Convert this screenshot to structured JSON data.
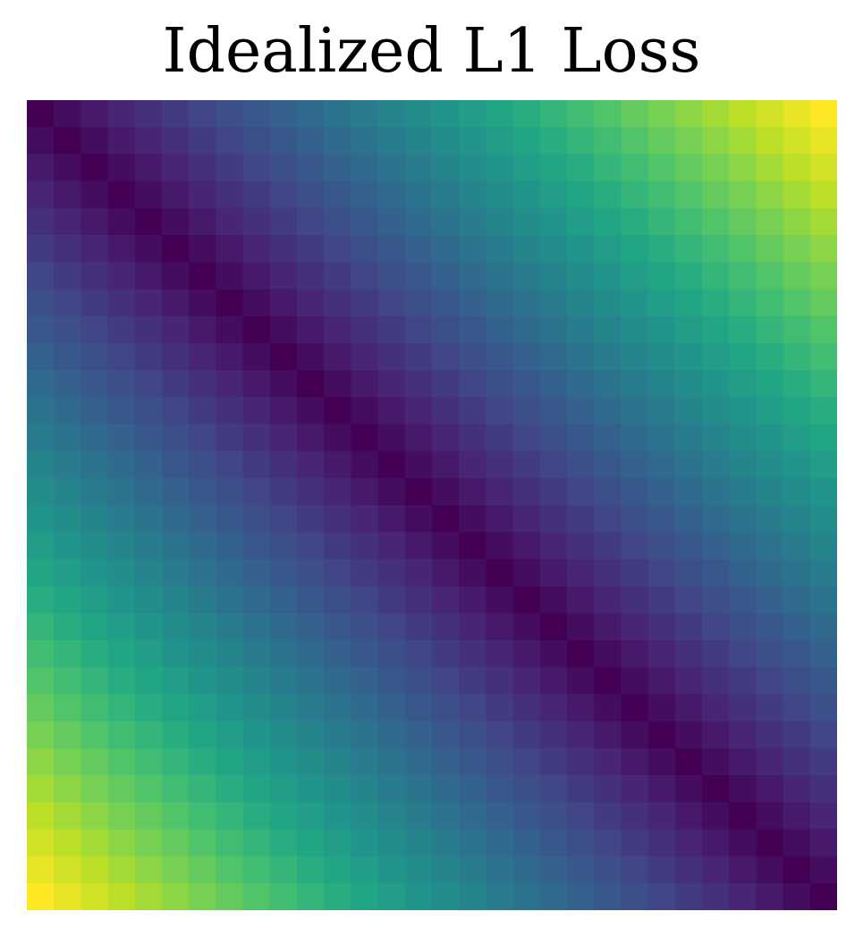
{
  "chart_data": {
    "type": "heatmap",
    "title": "Idealized L1 Loss",
    "xlabel": "",
    "ylabel": "",
    "rows": 30,
    "cols": 30,
    "value_rule": "abs(row - col)",
    "value_range": [
      0,
      29
    ],
    "colormap": "viridis",
    "axes_visible": false,
    "grid": false,
    "legend": "none"
  }
}
